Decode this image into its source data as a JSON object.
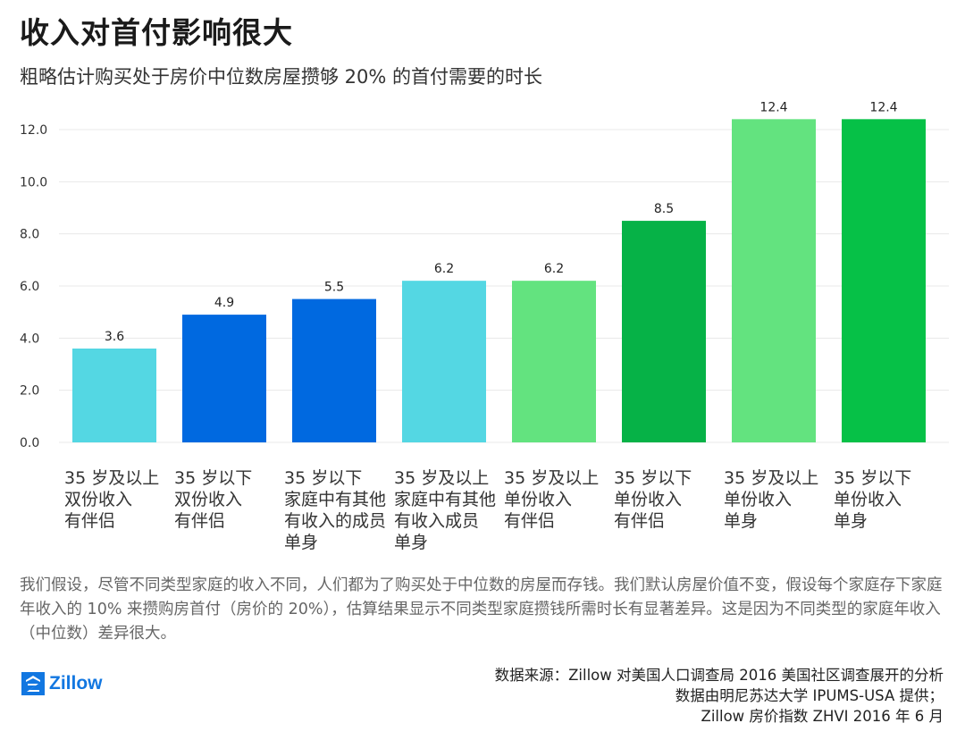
{
  "header": {
    "title": "收入对首付影响很大",
    "subtitle": "粗略估计购买处于房价中位数房屋攒够 20% 的首付需要的时长"
  },
  "chart_data": {
    "type": "bar",
    "title": "收入对首付影响很大",
    "subtitle": "粗略估计购买处于房价中位数房屋攒够 20% 的首付需要的时长",
    "xlabel": "",
    "ylabel": "",
    "ylim": [
      0,
      12
    ],
    "yticks": [
      0,
      2,
      4,
      6,
      8,
      10,
      12
    ],
    "ytick_labels": [
      "0.0",
      "2.0",
      "4.0",
      "6.0",
      "8.0",
      "10.0",
      "12.0"
    ],
    "grid": true,
    "categories": [
      "35 岁及以上\n双份收入\n有伴侣",
      "35 岁以下\n双份收入\n有伴侣",
      "35 岁以下\n家庭中有其他\n有收入的成员\n单身",
      "35 岁及以上\n家庭中有其他\n有收入成员\n单身",
      "35 岁及以上\n单份收入\n有伴侣",
      "35 岁以下\n单份收入\n有伴侣",
      "35 岁及以上\n单份收入\n单身",
      "35 岁以下\n单份收入\n单身"
    ],
    "values": [
      3.6,
      4.9,
      5.5,
      6.2,
      6.2,
      8.5,
      12.4,
      12.4
    ],
    "value_labels": [
      "3.6",
      "4.9",
      "5.5",
      "6.2",
      "6.2",
      "8.5",
      "12.4",
      "12.4"
    ],
    "colors": [
      "#54d7e3",
      "#0069e0",
      "#0069e0",
      "#54d7e3",
      "#63e37f",
      "#06b247",
      "#63e37f",
      "#06c147"
    ]
  },
  "note": "我们假设，尽管不同类型家庭的收入不同，人们都为了购买处于中位数的房屋而存钱。我们默认房屋价值不变，假设每个家庭存下家庭年收入的 10% 来攒购房首付（房价的 20%），估算结果显示不同类型家庭攒钱所需时长有显著差异。这是因为不同类型的家庭年收入（中位数）差异很大。",
  "footer": {
    "logo_text": "Zillow",
    "source_lines": [
      "数据来源：Zillow 对美国人口调查局 2016 美国社区调查展开的分析",
      "数据由明尼苏达大学 IPUMS-USA 提供；",
      "Zillow 房价指数 ZHVI 2016 年 6 月"
    ]
  },
  "colors": {
    "grid": "#e8e8e8",
    "logo_blue": "#1277e1"
  }
}
